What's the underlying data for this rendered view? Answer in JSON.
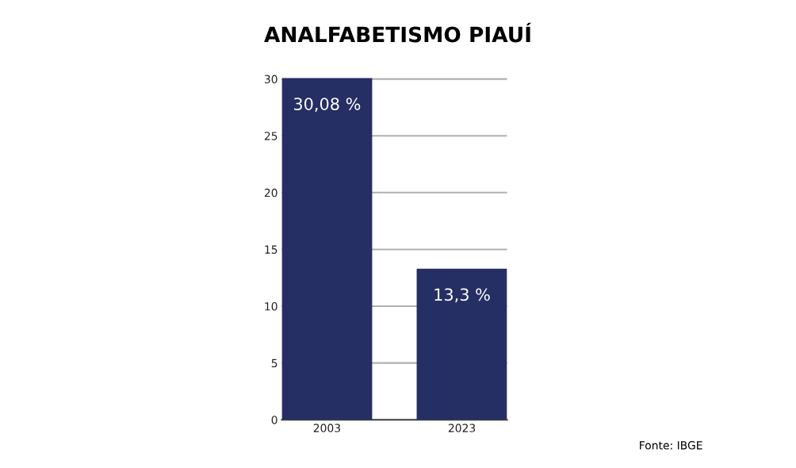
{
  "chart_data": {
    "type": "bar",
    "title": "ANALFABETISMO PIAUÍ",
    "categories": [
      "2003",
      "2023"
    ],
    "values": [
      30.08,
      13.3
    ],
    "value_labels": [
      "30,08 %",
      "13,3 %"
    ],
    "color": "#262f63",
    "ylim": [
      0,
      30.2
    ],
    "yticks": [
      0,
      5,
      10,
      15,
      20,
      25,
      30
    ],
    "grid": "y",
    "annotations": [
      "Fonte: IBGE"
    ]
  }
}
